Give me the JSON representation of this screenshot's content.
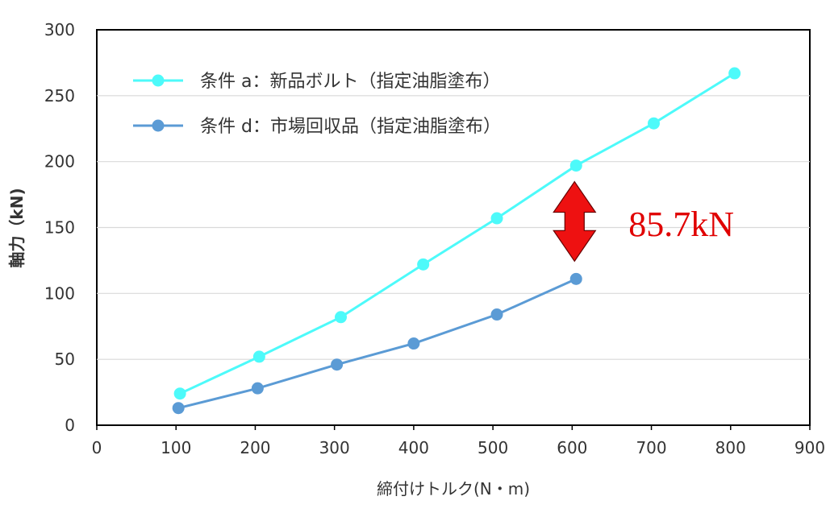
{
  "chart_data": {
    "type": "line",
    "xlabel": "締付けトルク(N・m)",
    "ylabel": "軸力（kN)",
    "xlim": [
      0,
      900
    ],
    "ylim": [
      0,
      300
    ],
    "xticks": [
      0,
      100,
      200,
      300,
      400,
      500,
      600,
      700,
      800,
      900
    ],
    "yticks": [
      0,
      50,
      100,
      150,
      200,
      250,
      300
    ],
    "grid": true,
    "legend_position": "top-left",
    "series": [
      {
        "name": "条件 a：新品ボルト（指定油脂塗布）",
        "color": "#4dfafa",
        "x": [
          105,
          205,
          308,
          412,
          505,
          605,
          703,
          805
        ],
        "y": [
          24,
          52,
          82,
          122,
          157,
          197,
          229,
          267
        ]
      },
      {
        "name": "条件 d：市場回収品（指定油脂塗布）",
        "color": "#5b9bd5",
        "x": [
          103,
          203,
          303,
          400,
          505,
          605
        ],
        "y": [
          13,
          28,
          46,
          62,
          84,
          111
        ]
      }
    ],
    "annotations": [
      {
        "text": "85.7kN",
        "color": "#e00000",
        "arrow_x": 603,
        "arrow_from": 111,
        "arrow_to": 197,
        "arrow_color": "#ee1111"
      }
    ]
  }
}
